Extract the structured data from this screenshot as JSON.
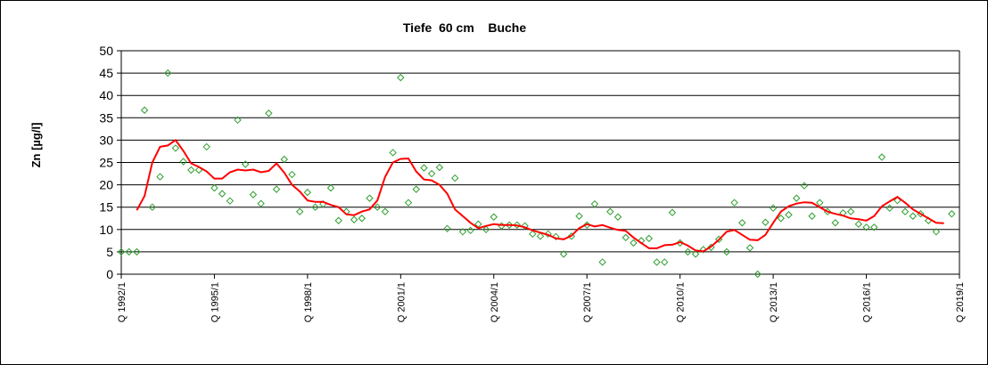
{
  "chart_data": {
    "type": "scatter",
    "title": "Tiefe  60 cm    Buche",
    "ylabel": "Zn [µg/l]",
    "xlabel": "",
    "ylim": [
      0,
      50
    ],
    "yticks": [
      0,
      5,
      10,
      15,
      20,
      25,
      30,
      35,
      40,
      45,
      50
    ],
    "xticks": [
      "Q 1992/1",
      "Q 1995/1",
      "Q 1998/1",
      "Q 2001/1",
      "Q 2004/1",
      "Q 2007/1",
      "Q 2010/1",
      "Q 2013/1",
      "Q 2016/1",
      "Q 2019/1"
    ],
    "x_quarter_range": [
      "Q 1992/1",
      "Q 2019/1"
    ],
    "grid": "horizontal",
    "series": [
      {
        "kind": "points",
        "marker": "diamond",
        "color": "#2e9e2e",
        "points": [
          [
            0,
            5
          ],
          [
            1,
            5
          ],
          [
            2,
            5
          ],
          [
            3,
            36.7
          ],
          [
            4,
            15
          ],
          [
            5,
            21.8
          ],
          [
            6,
            45
          ],
          [
            7,
            28.2
          ],
          [
            8,
            25.2
          ],
          [
            9,
            23.3
          ],
          [
            10,
            23.3
          ],
          [
            11,
            28.5
          ],
          [
            12,
            19.3
          ],
          [
            13,
            18
          ],
          [
            14,
            16.4
          ],
          [
            15,
            34.5
          ],
          [
            16,
            24.6
          ],
          [
            17,
            17.8
          ],
          [
            18,
            15.8
          ],
          [
            19,
            36
          ],
          [
            20,
            19
          ],
          [
            21,
            25.7
          ],
          [
            22,
            22.3
          ],
          [
            23,
            14
          ],
          [
            24,
            18.3
          ],
          [
            25,
            15
          ],
          [
            26,
            15.7
          ],
          [
            27,
            19.3
          ],
          [
            28,
            12
          ],
          [
            29,
            14
          ],
          [
            30,
            12.2
          ],
          [
            31,
            12.5
          ],
          [
            32,
            17
          ],
          [
            33,
            15
          ],
          [
            34,
            14
          ],
          [
            35,
            27.2
          ],
          [
            36,
            44
          ],
          [
            37,
            16
          ],
          [
            38,
            19
          ],
          [
            39,
            23.8
          ],
          [
            40,
            22.5
          ],
          [
            41,
            23.9
          ],
          [
            42,
            10.2
          ],
          [
            43,
            21.5
          ],
          [
            44,
            9.5
          ],
          [
            45,
            9.8
          ],
          [
            46,
            11.2
          ],
          [
            47,
            10
          ],
          [
            48,
            12.8
          ],
          [
            49,
            10.8
          ],
          [
            50,
            11
          ],
          [
            51,
            11
          ],
          [
            52,
            10.8
          ],
          [
            53,
            9
          ],
          [
            54,
            8.5
          ],
          [
            55,
            9
          ],
          [
            56,
            8.4
          ],
          [
            57,
            4.5
          ],
          [
            58,
            8.5
          ],
          [
            59,
            13
          ],
          [
            60,
            11
          ],
          [
            61,
            15.7
          ],
          [
            62,
            2.7
          ],
          [
            63,
            14
          ],
          [
            64,
            12.8
          ],
          [
            65,
            8.2
          ],
          [
            66,
            7
          ],
          [
            67,
            7.5
          ],
          [
            68,
            8
          ],
          [
            69,
            2.7
          ],
          [
            70,
            2.7
          ],
          [
            71,
            13.8
          ],
          [
            72,
            7
          ],
          [
            73,
            5
          ],
          [
            74,
            4.5
          ],
          [
            75,
            5.5
          ],
          [
            76,
            6
          ],
          [
            77,
            7.8
          ],
          [
            78,
            5
          ],
          [
            79,
            16
          ],
          [
            80,
            11.5
          ],
          [
            81,
            5.9
          ],
          [
            82,
            0
          ],
          [
            83,
            11.6
          ],
          [
            84,
            14.8
          ],
          [
            85,
            12.5
          ],
          [
            86,
            13.3
          ],
          [
            87,
            17
          ],
          [
            88,
            19.8
          ],
          [
            89,
            13
          ],
          [
            90,
            16
          ],
          [
            91,
            14
          ],
          [
            92,
            11.5
          ],
          [
            93,
            13.7
          ],
          [
            94,
            14
          ],
          [
            95,
            11.2
          ],
          [
            96,
            10.5
          ],
          [
            97,
            10.5
          ],
          [
            98,
            26.2
          ],
          [
            99,
            14.8
          ],
          [
            100,
            16.5
          ],
          [
            101,
            14
          ],
          [
            102,
            13
          ],
          [
            103,
            13.5
          ],
          [
            104,
            12
          ],
          [
            105,
            9.5
          ],
          [
            107,
            13.5
          ]
        ]
      },
      {
        "kind": "line",
        "color": "#ff0000",
        "points": [
          [
            2,
            14.3
          ],
          [
            3,
            17.5
          ],
          [
            4,
            25
          ],
          [
            5,
            28.5
          ],
          [
            6,
            28.8
          ],
          [
            7,
            30
          ],
          [
            8,
            27.6
          ],
          [
            9,
            24.8
          ],
          [
            10,
            24
          ],
          [
            11,
            23
          ],
          [
            12,
            21.4
          ],
          [
            13,
            21.4
          ],
          [
            14,
            22.8
          ],
          [
            15,
            23.4
          ],
          [
            16,
            23.2
          ],
          [
            17,
            23.4
          ],
          [
            18,
            22.8
          ],
          [
            19,
            23.1
          ],
          [
            20,
            24.8
          ],
          [
            21,
            22.7
          ],
          [
            22,
            20
          ],
          [
            23,
            18.5
          ],
          [
            24,
            16.5
          ],
          [
            25,
            16.2
          ],
          [
            26,
            16.2
          ],
          [
            27,
            15.5
          ],
          [
            28,
            15
          ],
          [
            29,
            13.4
          ],
          [
            30,
            13.2
          ],
          [
            31,
            14
          ],
          [
            32,
            14.5
          ],
          [
            33,
            16.5
          ],
          [
            34,
            21.8
          ],
          [
            35,
            25
          ],
          [
            36,
            25.8
          ],
          [
            37,
            25.9
          ],
          [
            38,
            23
          ],
          [
            39,
            21.2
          ],
          [
            40,
            21
          ],
          [
            41,
            20
          ],
          [
            42,
            18
          ],
          [
            43,
            14.5
          ],
          [
            44,
            13
          ],
          [
            45,
            11.5
          ],
          [
            46,
            10.3
          ],
          [
            47,
            10.8
          ],
          [
            48,
            11.2
          ],
          [
            49,
            11
          ],
          [
            50,
            11
          ],
          [
            51,
            10.9
          ],
          [
            52,
            10.5
          ],
          [
            53,
            9.8
          ],
          [
            54,
            9.3
          ],
          [
            55,
            8.8
          ],
          [
            56,
            8
          ],
          [
            57,
            7.8
          ],
          [
            58,
            8.6
          ],
          [
            59,
            10.3
          ],
          [
            60,
            11.2
          ],
          [
            61,
            10.7
          ],
          [
            62,
            11
          ],
          [
            63,
            10.4
          ],
          [
            64,
            9.9
          ],
          [
            65,
            9.7
          ],
          [
            66,
            8.2
          ],
          [
            67,
            7
          ],
          [
            68,
            5.8
          ],
          [
            69,
            5.8
          ],
          [
            70,
            6.5
          ],
          [
            71,
            6.6
          ],
          [
            72,
            7.2
          ],
          [
            73,
            6.4
          ],
          [
            74,
            5.3
          ],
          [
            75,
            5.1
          ],
          [
            76,
            6.2
          ],
          [
            77,
            7.7
          ],
          [
            78,
            9.5
          ],
          [
            79,
            9.9
          ],
          [
            80,
            8.8
          ],
          [
            81,
            7.7
          ],
          [
            82,
            7.6
          ],
          [
            83,
            8.8
          ],
          [
            84,
            11.5
          ],
          [
            85,
            14
          ],
          [
            86,
            15.2
          ],
          [
            87,
            15.8
          ],
          [
            88,
            16.1
          ],
          [
            89,
            16
          ],
          [
            90,
            15
          ],
          [
            91,
            14
          ],
          [
            92,
            13.5
          ],
          [
            93,
            13.1
          ],
          [
            94,
            12.5
          ],
          [
            95,
            12.3
          ],
          [
            96,
            12
          ],
          [
            97,
            13
          ],
          [
            98,
            15.2
          ],
          [
            99,
            16.3
          ],
          [
            100,
            17.3
          ],
          [
            101,
            16
          ],
          [
            102,
            14.5
          ],
          [
            103,
            13.5
          ],
          [
            104,
            12.5
          ],
          [
            105,
            11.5
          ],
          [
            106,
            11.4
          ]
        ]
      }
    ]
  }
}
